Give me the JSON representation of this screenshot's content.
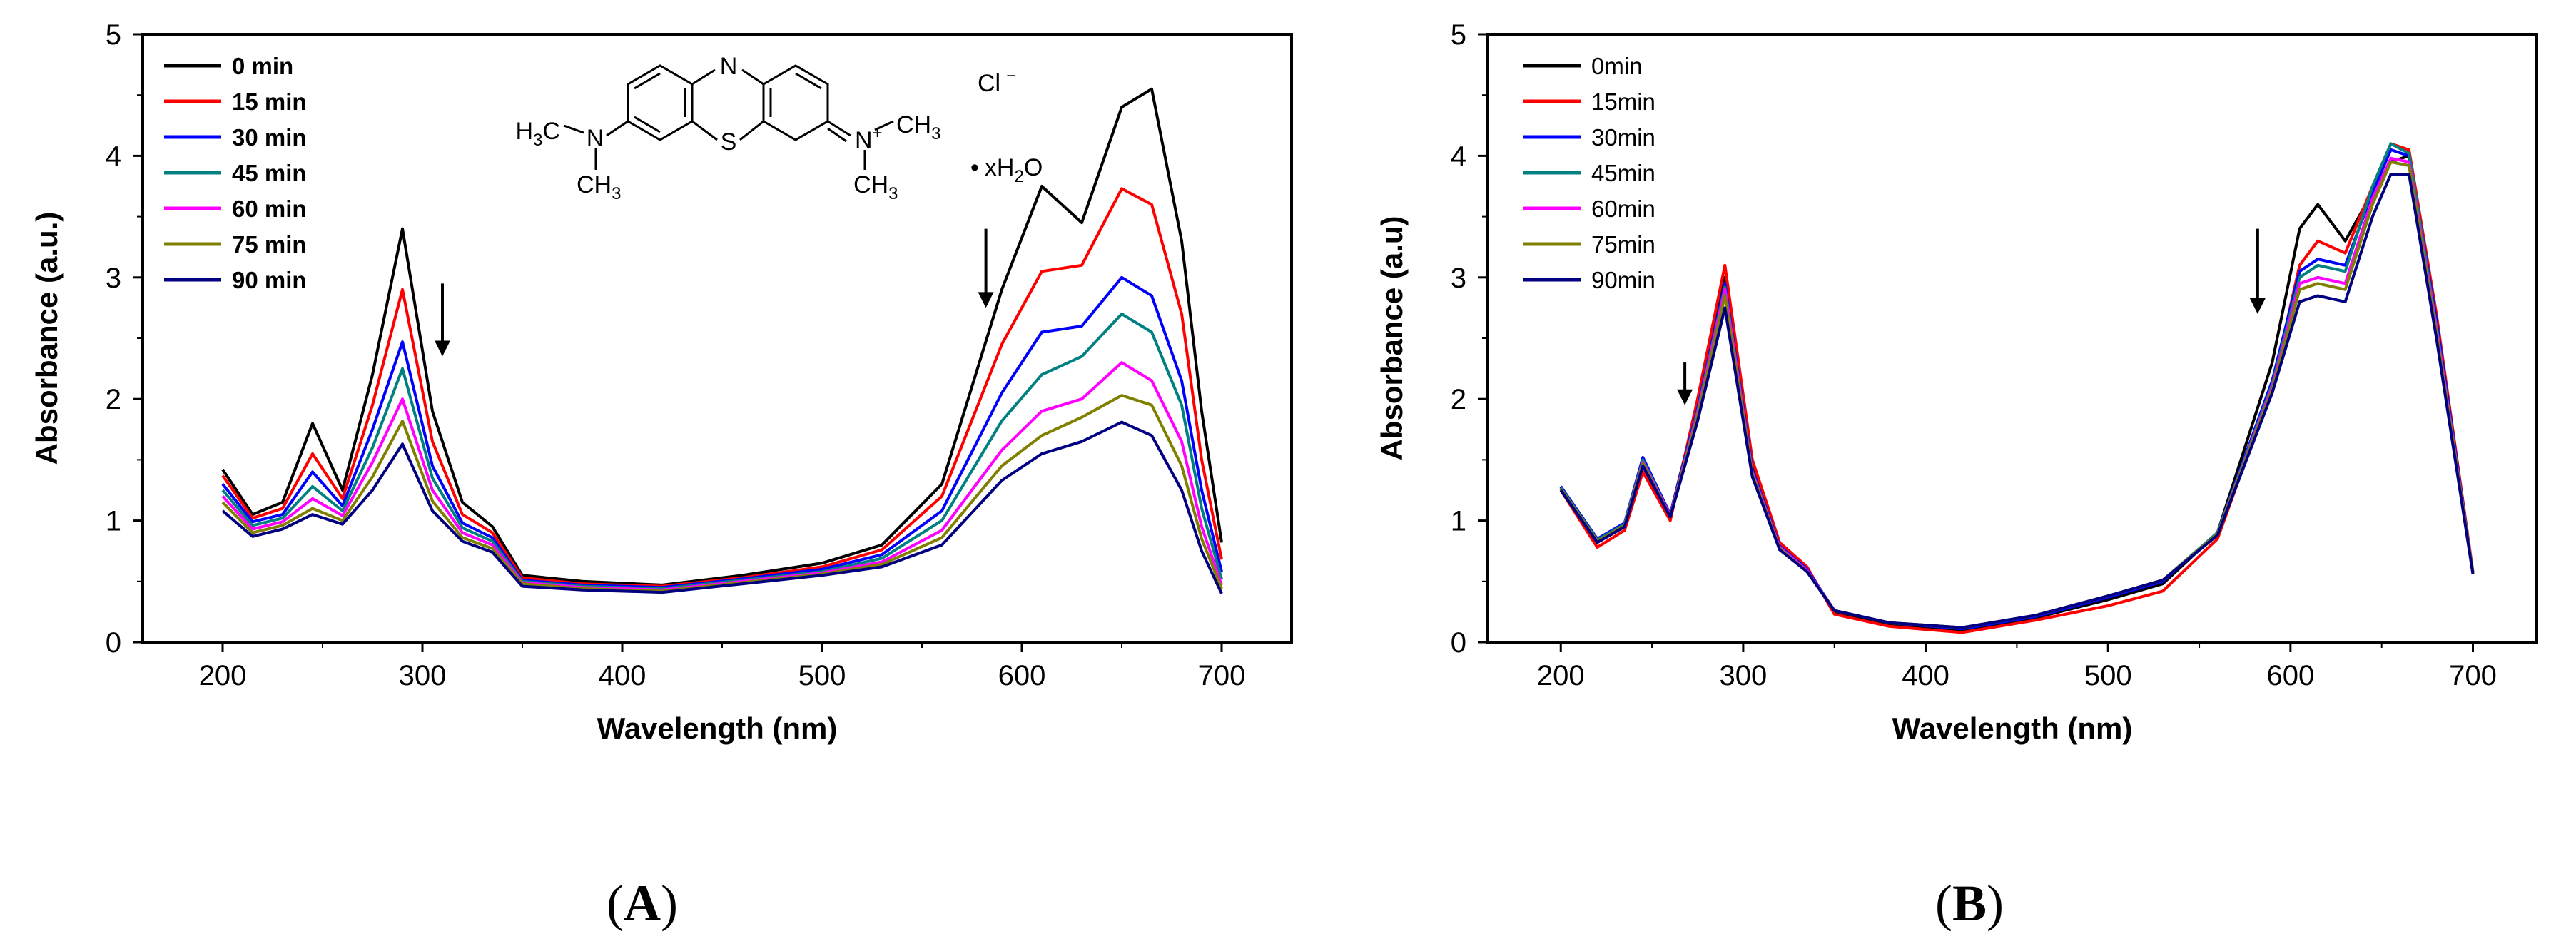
{
  "figure": {
    "panel_labels": [
      {
        "open": "(",
        "letter": "A",
        "close": ")"
      },
      {
        "open": "(",
        "letter": "B",
        "close": ")"
      }
    ],
    "molecule": {
      "label_ring_n": "N",
      "label_ring_s": "S",
      "label_left_h": "H",
      "label_left_h_sub": "3",
      "label_left_c": "C",
      "label_left_n": "N",
      "label_bottom_ch": "CH",
      "label_bottom_sub": "3",
      "label_right_n": "N",
      "label_right_plus": "+",
      "label_right_ch3_top": "CH",
      "label_right_ch3_top_sub": "3",
      "label_right_ch3_bot": "CH",
      "label_right_ch3_bot_sub": "3",
      "counterion": "Cl",
      "counterion_charge": "−",
      "hydrate_dot": "•",
      "hydrate_x": "xH",
      "hydrate_sub": "2",
      "hydrate_o": "O"
    }
  },
  "chart_data": [
    {
      "type": "line",
      "panel": "A",
      "xlabel": "Wavelength (nm)",
      "ylabel": "Absorbance (a.u.)",
      "xlim": [
        160,
        735
      ],
      "ylim": [
        0,
        5
      ],
      "xticks": [
        200,
        300,
        400,
        500,
        600,
        700
      ],
      "yticks": [
        0,
        1,
        2,
        3,
        4,
        5
      ],
      "legend_position": "top-left",
      "annotations": [
        {
          "type": "arrow-down",
          "x": 310,
          "y_from": 2.95,
          "y_to": 2.35
        },
        {
          "type": "arrow-down",
          "x": 582,
          "y_from": 3.4,
          "y_to": 2.75
        }
      ],
      "x": [
        200,
        215,
        230,
        245,
        260,
        275,
        290,
        305,
        320,
        335,
        350,
        380,
        420,
        460,
        500,
        530,
        560,
        590,
        610,
        630,
        650,
        665,
        680,
        690,
        700
      ],
      "series": [
        {
          "name": "0 min",
          "color": "#000000",
          "values": [
            1.42,
            1.05,
            1.15,
            1.8,
            1.25,
            2.2,
            3.4,
            1.9,
            1.15,
            0.95,
            0.55,
            0.5,
            0.47,
            0.55,
            0.65,
            0.8,
            1.3,
            2.9,
            3.75,
            3.45,
            4.4,
            4.55,
            3.3,
            1.9,
            0.82
          ]
        },
        {
          "name": "15 min",
          "color": "#ff0000",
          "values": [
            1.37,
            1.02,
            1.1,
            1.55,
            1.18,
            1.95,
            2.9,
            1.65,
            1.05,
            0.9,
            0.53,
            0.48,
            0.46,
            0.53,
            0.62,
            0.76,
            1.2,
            2.45,
            3.05,
            3.1,
            3.73,
            3.6,
            2.7,
            1.5,
            0.68
          ]
        },
        {
          "name": "30 min",
          "color": "#0000ff",
          "values": [
            1.3,
            0.99,
            1.05,
            1.4,
            1.12,
            1.75,
            2.47,
            1.45,
            0.98,
            0.86,
            0.51,
            0.47,
            0.45,
            0.52,
            0.6,
            0.72,
            1.08,
            2.05,
            2.55,
            2.6,
            3.0,
            2.85,
            2.15,
            1.25,
            0.58
          ]
        },
        {
          "name": "45 min",
          "color": "#008080",
          "values": [
            1.25,
            0.96,
            1.02,
            1.28,
            1.08,
            1.6,
            2.25,
            1.35,
            0.94,
            0.83,
            0.5,
            0.46,
            0.44,
            0.51,
            0.58,
            0.69,
            1.0,
            1.82,
            2.2,
            2.35,
            2.7,
            2.55,
            1.95,
            1.1,
            0.52
          ]
        },
        {
          "name": "60 min",
          "color": "#ff00ff",
          "values": [
            1.2,
            0.93,
            0.99,
            1.18,
            1.04,
            1.48,
            2.0,
            1.25,
            0.9,
            0.8,
            0.49,
            0.45,
            0.43,
            0.5,
            0.57,
            0.66,
            0.92,
            1.58,
            1.9,
            2.0,
            2.3,
            2.15,
            1.65,
            0.95,
            0.47
          ]
        },
        {
          "name": "75 min",
          "color": "#808000",
          "values": [
            1.15,
            0.9,
            0.96,
            1.1,
            1.0,
            1.36,
            1.82,
            1.16,
            0.86,
            0.77,
            0.48,
            0.44,
            0.42,
            0.49,
            0.56,
            0.64,
            0.86,
            1.45,
            1.7,
            1.85,
            2.03,
            1.95,
            1.45,
            0.85,
            0.44
          ]
        },
        {
          "name": "90 min",
          "color": "#000080",
          "values": [
            1.08,
            0.87,
            0.93,
            1.05,
            0.97,
            1.25,
            1.63,
            1.08,
            0.83,
            0.74,
            0.46,
            0.43,
            0.41,
            0.48,
            0.55,
            0.62,
            0.8,
            1.33,
            1.55,
            1.65,
            1.81,
            1.7,
            1.25,
            0.75,
            0.4
          ]
        }
      ]
    },
    {
      "type": "line",
      "panel": "B",
      "xlabel": "Wavelength (nm)",
      "ylabel": "Absorbance (a.u)",
      "xlim": [
        160,
        735
      ],
      "ylim": [
        0,
        5
      ],
      "xticks": [
        200,
        300,
        400,
        500,
        600,
        700
      ],
      "yticks": [
        0,
        1,
        2,
        3,
        4,
        5
      ],
      "legend_position": "top-left",
      "annotations": [
        {
          "type": "arrow-down",
          "x": 268,
          "y_from": 2.3,
          "y_to": 1.95
        },
        {
          "type": "arrow-down",
          "x": 582,
          "y_from": 3.4,
          "y_to": 2.7
        }
      ],
      "x": [
        200,
        220,
        235,
        245,
        260,
        275,
        290,
        305,
        320,
        335,
        350,
        380,
        420,
        460,
        500,
        530,
        560,
        590,
        605,
        615,
        630,
        645,
        655,
        665,
        680,
        700
      ],
      "series": [
        {
          "name": "0min",
          "color": "#000000",
          "values": [
            1.28,
            0.82,
            0.95,
            1.45,
            1.05,
            1.95,
            3.0,
            1.45,
            0.8,
            0.6,
            0.25,
            0.15,
            0.1,
            0.2,
            0.35,
            0.48,
            0.9,
            2.3,
            3.4,
            3.6,
            3.3,
            3.7,
            3.95,
            4.0,
            2.6,
            0.57
          ]
        },
        {
          "name": "15min",
          "color": "#ff0000",
          "values": [
            1.25,
            0.78,
            0.92,
            1.4,
            1.0,
            2.0,
            3.1,
            1.5,
            0.82,
            0.62,
            0.23,
            0.13,
            0.08,
            0.18,
            0.3,
            0.42,
            0.85,
            2.1,
            3.1,
            3.3,
            3.2,
            3.75,
            4.1,
            4.05,
            2.7,
            0.58
          ]
        },
        {
          "name": "30min",
          "color": "#0000ff",
          "values": [
            1.28,
            0.85,
            0.98,
            1.52,
            1.05,
            1.92,
            2.95,
            1.42,
            0.79,
            0.6,
            0.26,
            0.16,
            0.11,
            0.21,
            0.37,
            0.5,
            0.9,
            2.15,
            3.05,
            3.15,
            3.1,
            3.7,
            4.05,
            4.0,
            2.65,
            0.57
          ]
        },
        {
          "name": "45min",
          "color": "#008080",
          "values": [
            1.27,
            0.84,
            0.97,
            1.5,
            1.04,
            1.9,
            2.92,
            1.4,
            0.78,
            0.59,
            0.26,
            0.16,
            0.12,
            0.22,
            0.38,
            0.51,
            0.9,
            2.12,
            3.0,
            3.1,
            3.05,
            3.75,
            4.1,
            4.02,
            2.6,
            0.57
          ]
        },
        {
          "name": "60min",
          "color": "#ff00ff",
          "values": [
            1.26,
            0.83,
            0.96,
            1.48,
            1.04,
            1.88,
            2.9,
            1.39,
            0.78,
            0.59,
            0.26,
            0.16,
            0.12,
            0.22,
            0.38,
            0.51,
            0.89,
            2.1,
            2.95,
            3.0,
            2.95,
            3.65,
            3.98,
            3.95,
            2.58,
            0.57
          ]
        },
        {
          "name": "75min",
          "color": "#808000",
          "values": [
            1.26,
            0.83,
            0.96,
            1.47,
            1.03,
            1.86,
            2.85,
            1.38,
            0.77,
            0.58,
            0.26,
            0.16,
            0.12,
            0.22,
            0.38,
            0.51,
            0.89,
            2.08,
            2.9,
            2.95,
            2.9,
            3.6,
            3.95,
            3.92,
            2.55,
            0.57
          ]
        },
        {
          "name": "90min",
          "color": "#000080",
          "values": [
            1.25,
            0.82,
            0.95,
            1.45,
            1.03,
            1.82,
            2.75,
            1.36,
            0.76,
            0.58,
            0.26,
            0.16,
            0.12,
            0.22,
            0.38,
            0.51,
            0.88,
            2.05,
            2.8,
            2.85,
            2.8,
            3.5,
            3.85,
            3.85,
            2.5,
            0.56
          ]
        }
      ]
    }
  ]
}
